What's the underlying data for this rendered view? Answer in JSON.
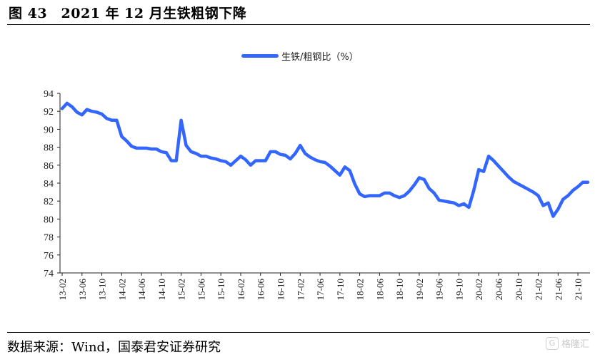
{
  "figure": {
    "title": "图 43　2021 年 12 月生铁粗钢下降",
    "source": "数据来源：Wind，国泰君安证券研究",
    "watermark": "格隆汇",
    "watermark_icon": "G"
  },
  "chart_data": {
    "type": "line",
    "title": "",
    "xlabel": "",
    "ylabel": "",
    "ylim": [
      74,
      94
    ],
    "yticks": [
      74,
      76,
      78,
      80,
      82,
      84,
      86,
      88,
      90,
      92,
      94
    ],
    "grid": false,
    "legend_position": "top-center",
    "x_tick_labels": [
      "13-02",
      "13-06",
      "13-10",
      "14-02",
      "14-06",
      "14-10",
      "15-02",
      "15-06",
      "15-10",
      "16-02",
      "16-06",
      "16-10",
      "17-02",
      "17-06",
      "17-10",
      "18-02",
      "18-06",
      "18-10",
      "19-02",
      "19-06",
      "19-10",
      "20-02",
      "20-06",
      "20-10",
      "21-02",
      "21-06",
      "21-10"
    ],
    "series": [
      {
        "name": "生铁/粗钢比（%）",
        "color": "#3366FF",
        "x": [
          "13-02",
          "13-03",
          "13-04",
          "13-05",
          "13-06",
          "13-07",
          "13-08",
          "13-09",
          "13-10",
          "13-11",
          "13-12",
          "14-01",
          "14-02",
          "14-03",
          "14-04",
          "14-05",
          "14-06",
          "14-07",
          "14-08",
          "14-09",
          "14-10",
          "14-11",
          "14-12",
          "15-01",
          "15-02",
          "15-03",
          "15-04",
          "15-05",
          "15-06",
          "15-07",
          "15-08",
          "15-09",
          "15-10",
          "15-11",
          "15-12",
          "16-01",
          "16-02",
          "16-03",
          "16-04",
          "16-05",
          "16-06",
          "16-07",
          "16-08",
          "16-09",
          "16-10",
          "16-11",
          "16-12",
          "17-01",
          "17-02",
          "17-03",
          "17-04",
          "17-05",
          "17-06",
          "17-07",
          "17-08",
          "17-09",
          "17-10",
          "17-11",
          "17-12",
          "18-01",
          "18-02",
          "18-03",
          "18-04",
          "18-05",
          "18-06",
          "18-07",
          "18-08",
          "18-09",
          "18-10",
          "18-11",
          "18-12",
          "19-01",
          "19-02",
          "19-03",
          "19-04",
          "19-05",
          "19-06",
          "19-07",
          "19-08",
          "19-09",
          "19-10",
          "19-11",
          "19-12",
          "20-01",
          "20-02",
          "20-03",
          "20-04",
          "20-05",
          "20-06",
          "20-07",
          "20-08",
          "20-09",
          "20-10",
          "20-11",
          "20-12",
          "21-01",
          "21-02",
          "21-03",
          "21-04",
          "21-05",
          "21-06",
          "21-07",
          "21-08",
          "21-09",
          "21-10",
          "21-11",
          "21-12"
        ],
        "values": [
          92.3,
          92.9,
          92.5,
          91.9,
          91.6,
          92.2,
          92.0,
          91.9,
          91.7,
          91.2,
          91.0,
          91.0,
          89.2,
          88.7,
          88.1,
          87.9,
          87.9,
          87.9,
          87.8,
          87.8,
          87.5,
          87.4,
          86.5,
          86.5,
          91.0,
          88.2,
          87.5,
          87.3,
          87.0,
          87.0,
          86.8,
          86.7,
          86.5,
          86.4,
          86.0,
          86.5,
          87.0,
          86.6,
          86.0,
          86.5,
          86.5,
          86.5,
          87.5,
          87.5,
          87.2,
          87.1,
          86.7,
          87.3,
          88.2,
          87.3,
          86.9,
          86.6,
          86.4,
          86.3,
          85.9,
          85.4,
          84.9,
          85.8,
          85.4,
          83.9,
          82.8,
          82.5,
          82.6,
          82.6,
          82.6,
          82.9,
          82.9,
          82.6,
          82.4,
          82.6,
          83.1,
          83.8,
          84.6,
          84.4,
          83.4,
          82.9,
          82.1,
          82.0,
          81.9,
          81.8,
          81.5,
          81.7,
          81.3,
          83.2,
          85.5,
          85.3,
          87.0,
          86.5,
          85.9,
          85.3,
          84.7,
          84.2,
          83.9,
          83.6,
          83.3,
          83.0,
          82.6,
          81.5,
          81.8,
          80.3,
          81.1,
          82.2,
          82.6,
          83.2,
          83.6,
          84.1,
          84.1
        ]
      }
    ]
  }
}
